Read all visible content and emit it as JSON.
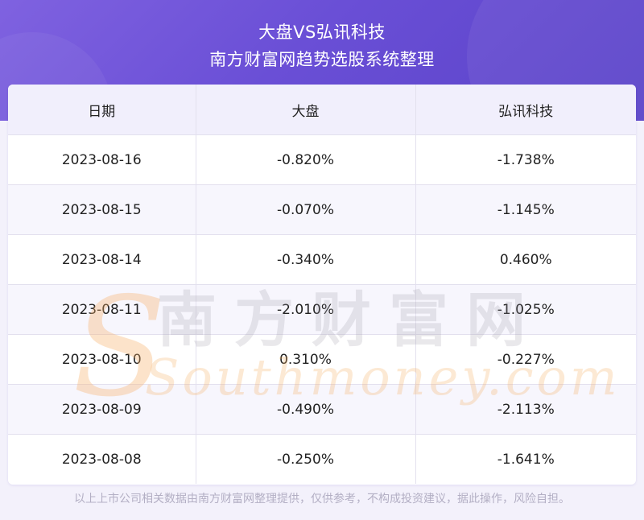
{
  "header": {
    "title": "大盘VS弘讯科技",
    "subtitle": "南方财富网趋势选股系统整理"
  },
  "watermark": {
    "cn": "南方财富网",
    "en": "Southmoney.com"
  },
  "chart_data": {
    "type": "table",
    "columns": [
      "日期",
      "大盘",
      "弘讯科技"
    ],
    "rows": [
      [
        "2023-08-16",
        "-0.820%",
        "-1.738%"
      ],
      [
        "2023-08-15",
        "-0.070%",
        "-1.145%"
      ],
      [
        "2023-08-14",
        "-0.340%",
        "0.460%"
      ],
      [
        "2023-08-11",
        "-2.010%",
        "-1.025%"
      ],
      [
        "2023-08-10",
        "0.310%",
        "-0.227%"
      ],
      [
        "2023-08-09",
        "-0.490%",
        "-2.113%"
      ],
      [
        "2023-08-08",
        "-0.250%",
        "-1.641%"
      ]
    ]
  },
  "footer": {
    "disclaimer": "以上上市公司相关数据由南方财富网整理提供，仅供参考，不构成投资建议，据此操作，风险自担。"
  }
}
